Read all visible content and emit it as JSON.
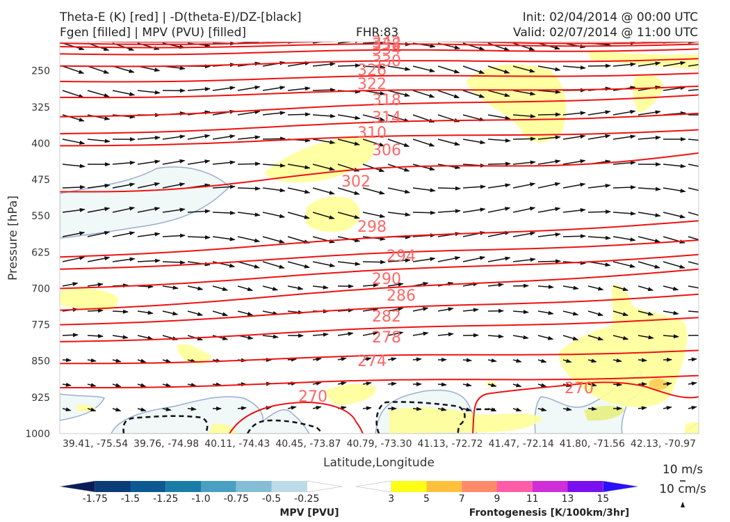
{
  "header": {
    "title_line1": "Theta-E (K) [red] | -D(theta-E)/DZ-[black]",
    "title_line2": "Fgen [filled] | MPV (PVU) [filled]",
    "fhr": "FHR:83",
    "init": "Init: 02/04/2014 @ 00:00 UTC",
    "valid": "Valid: 02/07/2014 @ 11:00 UTC"
  },
  "chart_data": {
    "type": "cross-section",
    "xlabel": "Latitude,Longitude",
    "ylabel": "Pressure [hPa]",
    "x_ticks": [
      "39.41, -75.54",
      "39.76, -74.98",
      "40.11, -74.43",
      "40.45, -73.87",
      "40.79, -73.30",
      "41.13, -72.72",
      "41.47, -72.14",
      "41.80, -71.56",
      "42.13, -70.97"
    ],
    "y_ticks": [
      250,
      325,
      400,
      475,
      550,
      625,
      700,
      775,
      850,
      925,
      1000
    ],
    "ylim": [
      1000,
      190
    ],
    "colors": {
      "theta_e": "#ee1111",
      "contour_label": "#ff6666",
      "vectors": "#111111",
      "mpv_outline": "#9aaed0",
      "fgen_light": "#ffff99"
    },
    "theta_e_contours": [
      {
        "value": 270,
        "label": "270"
      },
      {
        "value": 274,
        "label": "274"
      },
      {
        "value": 278,
        "label": "278"
      },
      {
        "value": 282,
        "label": "282"
      },
      {
        "value": 286,
        "label": "286"
      },
      {
        "value": 290,
        "label": "290"
      },
      {
        "value": 294,
        "label": "294"
      },
      {
        "value": 298,
        "label": "298"
      },
      {
        "value": 302,
        "label": "302"
      },
      {
        "value": 306,
        "label": "306"
      },
      {
        "value": 310,
        "label": "310"
      },
      {
        "value": 314,
        "label": "314"
      },
      {
        "value": 318,
        "label": "318"
      },
      {
        "value": 322,
        "label": "322"
      },
      {
        "value": 326,
        "label": "326"
      },
      {
        "value": 330,
        "label": "330"
      },
      {
        "value": 334,
        "label": "334"
      },
      {
        "value": 338,
        "label": "338"
      },
      {
        "value": 342,
        "label": "342"
      }
    ],
    "mpv_colorbar": {
      "title": "MPV [PVU]",
      "tick_labels": [
        "-1.75",
        "-1.5",
        "-1.25",
        "-1.0",
        "-0.75",
        "-0.5",
        "-0.25"
      ],
      "colors": [
        "#081d58",
        "#0c3c78",
        "#0d5a92",
        "#1b7ca8",
        "#4aa0c2",
        "#84bdd4",
        "#bcdbe6",
        "#ffffff"
      ]
    },
    "fgen_colorbar": {
      "title": "Frontogenesis [K/100km/3hr]",
      "tick_labels": [
        "3",
        "5",
        "7",
        "9",
        "11",
        "13",
        "15"
      ],
      "colors": [
        "#ffffff",
        "#ffff14",
        "#ffc03c",
        "#ff8a6a",
        "#ff5ca8",
        "#d02ed8",
        "#7a10f0",
        "#2b10ff"
      ]
    },
    "reference_vectors": {
      "horizontal": "10 m/s",
      "vertical": "10 cm/s"
    }
  }
}
